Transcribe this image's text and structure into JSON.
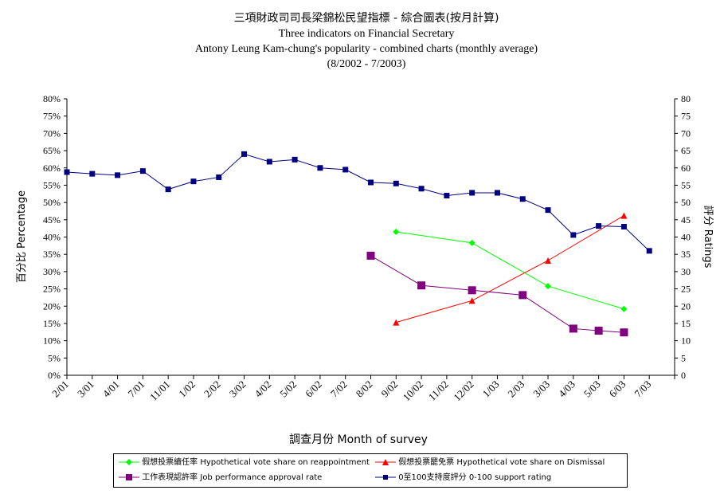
{
  "chart_data": {
    "type": "line",
    "title": "三項財政司司長梁錦松民望指標 - 綜合圖表(按月計算)",
    "subtitle_lines": [
      "Three indicators on Financial Secretary",
      "Antony Leung Kam-chung's popularity - combined charts (monthly average)",
      "(8/2002 - 7/2003)"
    ],
    "xlabel": "調查月份  Month of survey",
    "ylabel_left": "百分比  Percentage",
    "ylabel_right": "評分  Ratings",
    "categories": [
      "2/01",
      "3/01",
      "4/01",
      "7/01",
      "11/01",
      "1/02",
      "2/02",
      "3/02",
      "4/02",
      "5/02",
      "6/02",
      "7/02",
      "8/02",
      "9/02",
      "10/02",
      "11/02",
      "12/02",
      "1/03",
      "2/03",
      "3/03",
      "4/03",
      "5/03",
      "6/03",
      "7/03"
    ],
    "ylim_left": [
      0,
      80
    ],
    "ylim_right": [
      0,
      80
    ],
    "left_ticks": [
      "0%",
      "5%",
      "10%",
      "15%",
      "20%",
      "25%",
      "30%",
      "35%",
      "40%",
      "45%",
      "50%",
      "55%",
      "60%",
      "65%",
      "70%",
      "75%",
      "80%"
    ],
    "right_ticks": [
      "0",
      "5",
      "10",
      "15",
      "20",
      "25",
      "30",
      "35",
      "40",
      "45",
      "50",
      "55",
      "60",
      "65",
      "70",
      "75",
      "80"
    ],
    "series": [
      {
        "name": "假想投票續任率 Hypothetical vote share on reappointment",
        "color": "#00ff00",
        "marker": "diamond",
        "axis": "left",
        "values": [
          null,
          null,
          null,
          null,
          null,
          null,
          null,
          null,
          null,
          null,
          null,
          null,
          null,
          41.5,
          null,
          null,
          38.3,
          null,
          null,
          25.8,
          null,
          null,
          19.2,
          null
        ]
      },
      {
        "name": "假想投票罷免票 Hypothetical vote share on Dismissal",
        "color": "#ff0000",
        "marker": "triangle",
        "axis": "left",
        "values": [
          null,
          null,
          null,
          null,
          null,
          null,
          null,
          null,
          null,
          null,
          null,
          null,
          null,
          15.3,
          null,
          null,
          21.6,
          null,
          null,
          33.2,
          null,
          null,
          46.2,
          null
        ]
      },
      {
        "name": "工作表現認許率 Job performance approval rate",
        "color": "#800080",
        "marker": "square",
        "axis": "left",
        "values": [
          null,
          null,
          null,
          null,
          null,
          null,
          null,
          null,
          null,
          null,
          null,
          null,
          34.6,
          null,
          26.0,
          null,
          24.6,
          null,
          23.2,
          null,
          13.5,
          12.9,
          12.4,
          null
        ]
      },
      {
        "name": "0至100支持度評分 0-100 support rating",
        "color": "#000080",
        "marker": "square-small",
        "axis": "right",
        "values": [
          58.8,
          58.3,
          57.9,
          59.1,
          53.8,
          56.1,
          57.3,
          64.0,
          61.8,
          62.4,
          60.0,
          59.5,
          55.8,
          55.5,
          54.0,
          52.0,
          52.8,
          52.8,
          51.0,
          47.8,
          40.6,
          43.2,
          43.0,
          36.0
        ]
      }
    ],
    "grid": false,
    "legend_position": "bottom"
  }
}
